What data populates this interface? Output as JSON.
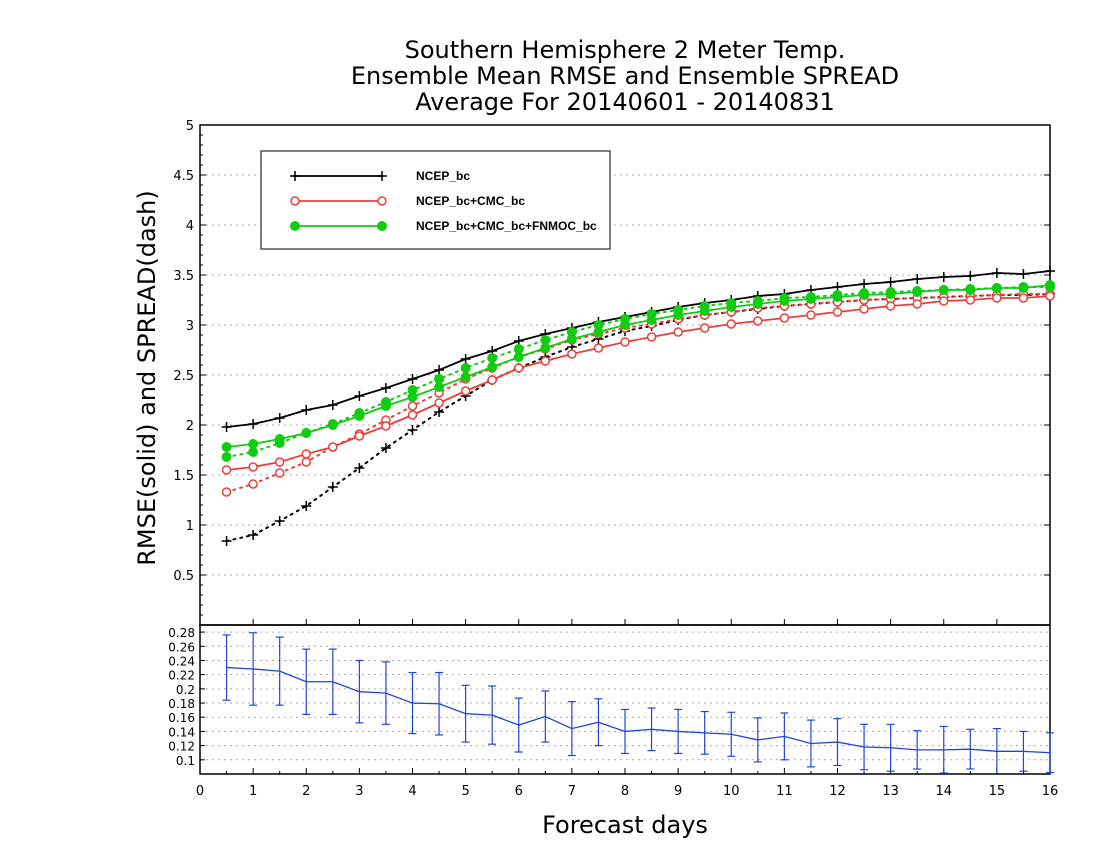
{
  "chart_data": {
    "type": "line",
    "title": [
      "Southern Hemisphere 2 Meter Temp.",
      "Ensemble Mean RMSE and Ensemble SPREAD",
      "Average For 20140601 - 20140831"
    ],
    "xlabel": "Forecast days",
    "ylabel": "RMSE(solid) and SPREAD(dash)",
    "xlim": [
      0,
      16
    ],
    "ylim": [
      0,
      5
    ],
    "x_ticks": [
      "0",
      "1",
      "2",
      "3",
      "4",
      "5",
      "6",
      "7",
      "8",
      "9",
      "10",
      "11",
      "12",
      "13",
      "14",
      "15",
      "16"
    ],
    "y_ticks": [
      "0.5",
      "1",
      "1.5",
      "2",
      "2.5",
      "3",
      "3.5",
      "4",
      "4.5",
      "5"
    ],
    "grid": true,
    "legend_position": "top-left",
    "x": [
      0.5,
      1,
      1.5,
      2,
      2.5,
      3,
      3.5,
      4,
      4.5,
      5,
      5.5,
      6,
      6.5,
      7,
      7.5,
      8,
      8.5,
      9,
      9.5,
      10,
      10.5,
      11,
      11.5,
      12,
      12.5,
      13,
      13.5,
      14,
      14.5,
      15,
      15.5,
      16
    ],
    "series": [
      {
        "name": "NCEP_bc",
        "color": "#000000",
        "marker": "plus",
        "rmse": [
          1.98,
          2.01,
          2.07,
          2.15,
          2.2,
          2.29,
          2.37,
          2.46,
          2.55,
          2.66,
          2.74,
          2.84,
          2.91,
          2.97,
          3.03,
          3.08,
          3.13,
          3.18,
          3.22,
          3.25,
          3.29,
          3.31,
          3.35,
          3.38,
          3.41,
          3.43,
          3.46,
          3.48,
          3.49,
          3.52,
          3.51,
          3.54
        ],
        "spread": [
          0.84,
          0.9,
          1.04,
          1.19,
          1.38,
          1.57,
          1.77,
          1.95,
          2.13,
          2.29,
          2.45,
          2.57,
          2.68,
          2.78,
          2.86,
          2.94,
          2.99,
          3.05,
          3.1,
          3.13,
          3.16,
          3.19,
          3.21,
          3.23,
          3.25,
          3.26,
          3.27,
          3.28,
          3.29,
          3.3,
          3.3,
          3.31
        ]
      },
      {
        "name": "NCEP_bc+CMC_bc",
        "color": "#e8413c",
        "marker": "open-circle",
        "rmse": [
          1.55,
          1.58,
          1.63,
          1.71,
          1.78,
          1.89,
          1.99,
          2.1,
          2.22,
          2.34,
          2.45,
          2.57,
          2.64,
          2.71,
          2.77,
          2.83,
          2.88,
          2.93,
          2.97,
          3.01,
          3.04,
          3.07,
          3.1,
          3.13,
          3.16,
          3.19,
          3.21,
          3.24,
          3.25,
          3.27,
          3.27,
          3.29
        ],
        "spread": [
          1.33,
          1.41,
          1.52,
          1.63,
          1.78,
          1.91,
          2.05,
          2.19,
          2.32,
          2.46,
          2.57,
          2.68,
          2.76,
          2.85,
          2.91,
          2.97,
          3.01,
          3.06,
          3.1,
          3.13,
          3.17,
          3.19,
          3.21,
          3.23,
          3.25,
          3.26,
          3.27,
          3.28,
          3.29,
          3.3,
          3.31,
          3.31
        ]
      },
      {
        "name": "NCEP_bc+CMC_bc+FNMOC_bc",
        "color": "#11cc11",
        "marker": "filled-circle",
        "rmse": [
          1.78,
          1.81,
          1.86,
          1.92,
          2.0,
          2.09,
          2.19,
          2.28,
          2.38,
          2.48,
          2.58,
          2.68,
          2.77,
          2.86,
          2.93,
          3.0,
          3.05,
          3.1,
          3.14,
          3.18,
          3.21,
          3.24,
          3.26,
          3.28,
          3.3,
          3.31,
          3.33,
          3.35,
          3.35,
          3.37,
          3.37,
          3.4
        ],
        "spread": [
          1.68,
          1.73,
          1.82,
          1.92,
          2.01,
          2.12,
          2.23,
          2.35,
          2.46,
          2.57,
          2.67,
          2.76,
          2.85,
          2.93,
          3.0,
          3.06,
          3.11,
          3.15,
          3.19,
          3.22,
          3.24,
          3.27,
          3.28,
          3.3,
          3.32,
          3.33,
          3.34,
          3.35,
          3.36,
          3.37,
          3.38,
          3.38
        ]
      }
    ],
    "difference_panel": {
      "type": "line_errorbar",
      "ylim": [
        0.08,
        0.29
      ],
      "y_ticks": [
        "0.1",
        "0.12",
        "0.14",
        "0.16",
        "0.18",
        "0.2",
        "0.22",
        "0.24",
        "0.26",
        "0.28"
      ],
      "color": "#2244dd",
      "values": [
        0.23,
        0.228,
        0.225,
        0.21,
        0.21,
        0.196,
        0.194,
        0.18,
        0.179,
        0.165,
        0.163,
        0.149,
        0.161,
        0.144,
        0.153,
        0.14,
        0.143,
        0.14,
        0.138,
        0.136,
        0.128,
        0.133,
        0.123,
        0.125,
        0.118,
        0.117,
        0.114,
        0.114,
        0.115,
        0.112,
        0.112,
        0.11
      ],
      "errors": [
        0.046,
        0.051,
        0.048,
        0.046,
        0.046,
        0.044,
        0.044,
        0.043,
        0.044,
        0.04,
        0.041,
        0.038,
        0.036,
        0.038,
        0.033,
        0.031,
        0.03,
        0.031,
        0.03,
        0.031,
        0.031,
        0.033,
        0.033,
        0.033,
        0.032,
        0.033,
        0.027,
        0.033,
        0.028,
        0.032,
        0.028,
        0.028
      ]
    }
  }
}
